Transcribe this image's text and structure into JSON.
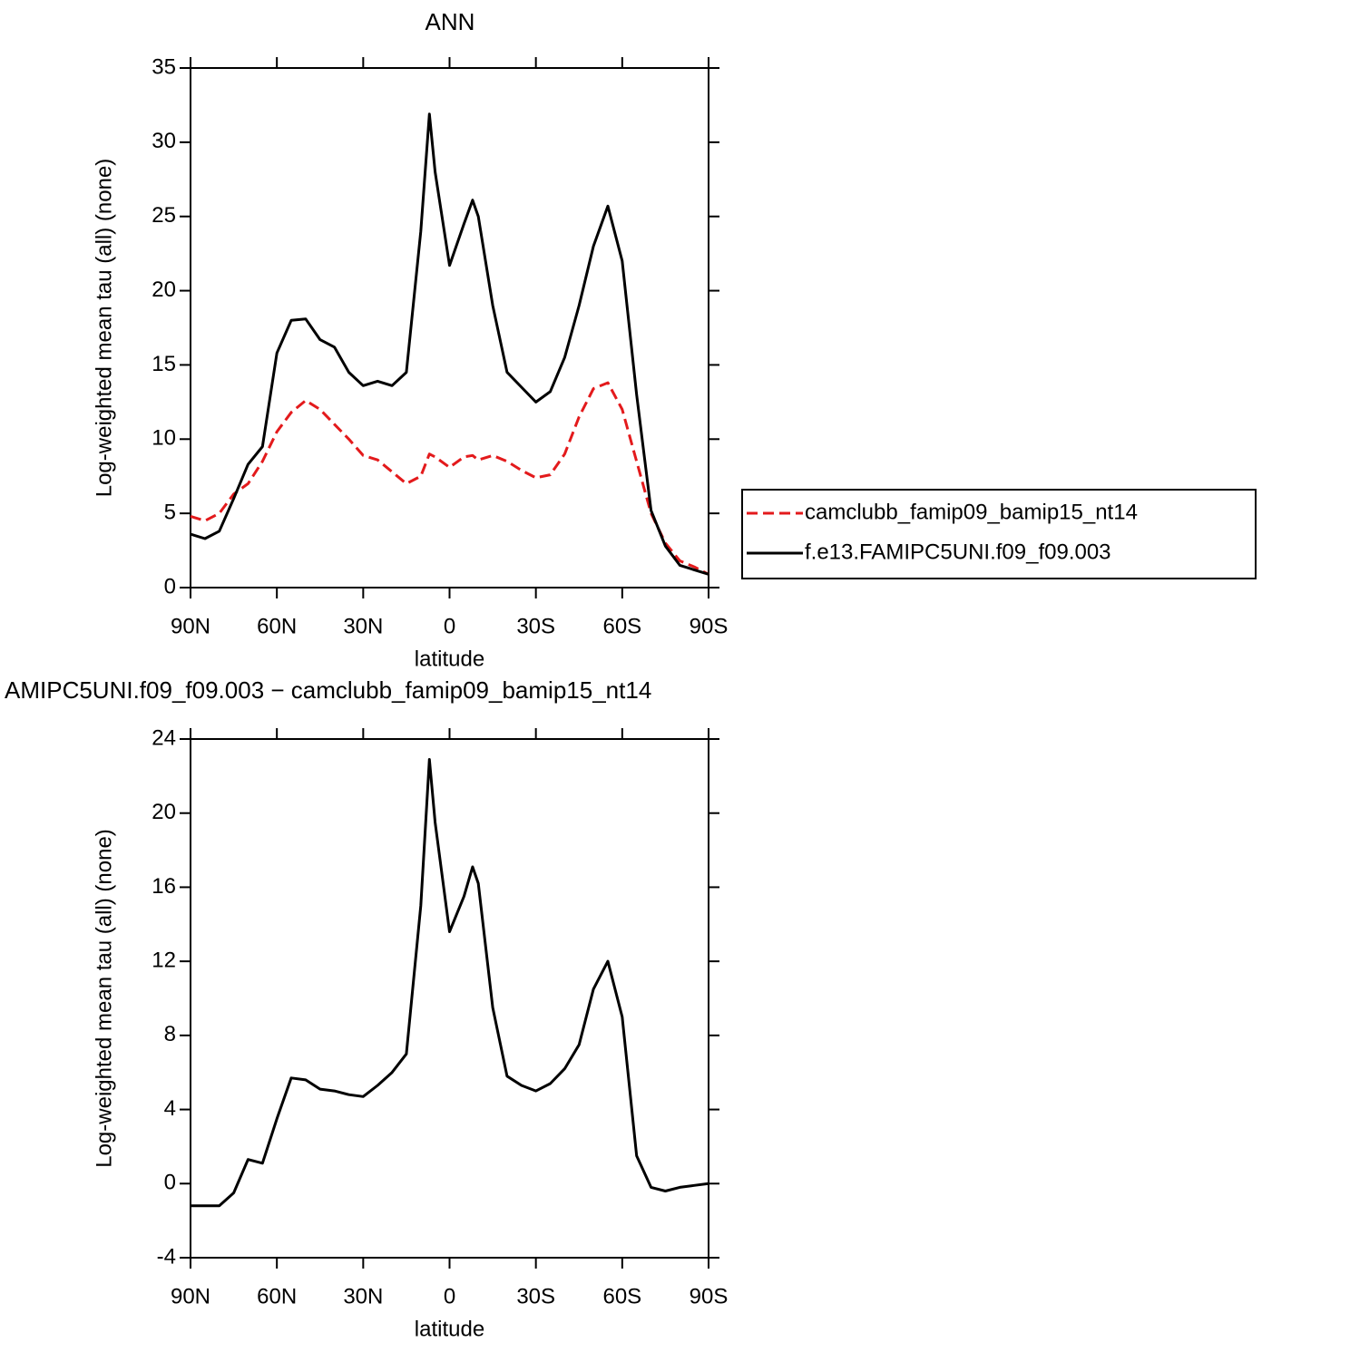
{
  "chart_data": [
    {
      "type": "line",
      "title": "ANN",
      "x_label": "latitude",
      "y_label": "Log-weighted mean tau (all) (none)",
      "x": [
        90,
        85,
        80,
        75,
        70,
        65,
        60,
        55,
        50,
        45,
        40,
        35,
        30,
        25,
        20,
        15,
        10,
        7,
        5,
        0,
        -5,
        -8,
        -10,
        -15,
        -20,
        -25,
        -30,
        -35,
        -40,
        -45,
        -50,
        -55,
        -60,
        -65,
        -70,
        -75,
        -80,
        -85,
        -90
      ],
      "series": [
        {
          "name": "camclubb_famip09_bamip15_nt14",
          "color": "#e31a1c",
          "line_style": "dashed",
          "values": [
            4.8,
            4.5,
            5.0,
            6.3,
            7.0,
            8.5,
            10.5,
            11.8,
            12.6,
            12.0,
            11.0,
            10.0,
            8.9,
            8.6,
            7.8,
            7.0,
            7.5,
            9.0,
            8.8,
            8.1,
            8.8,
            8.9,
            8.6,
            8.9,
            8.5,
            7.9,
            7.4,
            7.6,
            9.0,
            11.5,
            13.4,
            13.8,
            12.0,
            8.5,
            5.0,
            3.0,
            1.8,
            1.4,
            0.9
          ]
        },
        {
          "name": "f.e13.FAMIPC5UNI.f09_f09.003",
          "color": "#000000",
          "line_style": "solid",
          "values": [
            3.6,
            3.3,
            3.8,
            6.0,
            8.3,
            9.5,
            15.8,
            18.0,
            18.1,
            16.7,
            16.2,
            14.5,
            13.6,
            13.9,
            13.6,
            14.5,
            24.0,
            31.9,
            28.0,
            21.7,
            24.5,
            26.1,
            25.0,
            19.0,
            14.5,
            13.5,
            12.5,
            13.2,
            15.5,
            19.0,
            23.0,
            25.7,
            22.0,
            13.0,
            5.2,
            2.8,
            1.5,
            1.2,
            0.9
          ]
        }
      ],
      "xlim": [
        90,
        -90
      ],
      "xticks": [
        {
          "value": 90,
          "label": "90N"
        },
        {
          "value": 60,
          "label": "60N"
        },
        {
          "value": 30,
          "label": "30N"
        },
        0,
        {
          "value": -30,
          "label": "30S"
        },
        {
          "value": -60,
          "label": "60S"
        },
        {
          "value": -90,
          "label": "90S"
        }
      ],
      "ylim": [
        0,
        35
      ],
      "yticks": [
        0,
        5,
        10,
        15,
        20,
        25,
        30,
        35
      ],
      "legend": "right"
    },
    {
      "type": "line",
      "title": "AMIPC5UNI.f09_f09.003 − camclubb_famip09_bamip15_nt14",
      "x_label": "latitude",
      "y_label": "Log-weighted mean tau (all) (none)",
      "x": [
        90,
        85,
        80,
        75,
        70,
        65,
        60,
        55,
        50,
        45,
        40,
        35,
        30,
        25,
        20,
        15,
        10,
        7,
        5,
        0,
        -5,
        -8,
        -10,
        -15,
        -20,
        -25,
        -30,
        -35,
        -40,
        -45,
        -50,
        -55,
        -60,
        -65,
        -70,
        -75,
        -80,
        -85,
        -90
      ],
      "series": [
        {
          "color": "#000000",
          "line_style": "solid",
          "values": [
            -1.2,
            -1.2,
            -1.2,
            -0.5,
            1.3,
            1.1,
            3.5,
            5.7,
            5.6,
            5.1,
            5.0,
            4.8,
            4.7,
            5.3,
            6.0,
            7.0,
            15.0,
            22.9,
            19.5,
            13.6,
            15.5,
            17.1,
            16.2,
            9.5,
            5.8,
            5.3,
            5.0,
            5.4,
            6.2,
            7.5,
            10.5,
            12.0,
            9.0,
            1.5,
            -0.2,
            -0.4,
            -0.2,
            -0.1,
            0
          ]
        }
      ],
      "xlim": [
        90,
        -90
      ],
      "xticks": [
        {
          "value": 90,
          "label": "90N"
        },
        {
          "value": 60,
          "label": "60N"
        },
        {
          "value": 30,
          "label": "30N"
        },
        0,
        {
          "value": -30,
          "label": "30S"
        },
        {
          "value": -60,
          "label": "60S"
        },
        {
          "value": -90,
          "label": "90S"
        }
      ],
      "ylim": [
        -4,
        24
      ],
      "yticks": [
        -4,
        0,
        4,
        8,
        12,
        16,
        20,
        24
      ]
    }
  ]
}
